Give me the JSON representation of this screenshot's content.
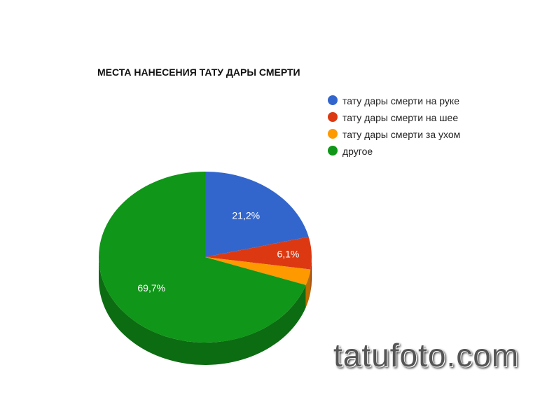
{
  "chart_data": {
    "type": "pie",
    "style": "3d",
    "title": "МЕСТА НАНЕСЕНИЯ ТАТУ ДАРЫ СМЕРТИ",
    "legend_position": "right",
    "series": [
      {
        "name": "тату дары смерти на руке",
        "value": 21.2,
        "label": "21,2%",
        "color": "#3366cc"
      },
      {
        "name": "тату дары смерти на шее",
        "value": 6.1,
        "label": "6,1%",
        "color": "#dc3912"
      },
      {
        "name": "тату дары смерти за ухом",
        "value": 3.0,
        "label": "",
        "color": "#ff9900"
      },
      {
        "name": "другое",
        "value": 69.7,
        "label": "69,7%",
        "color": "#109618"
      }
    ]
  },
  "watermark": "tatufoto.com"
}
